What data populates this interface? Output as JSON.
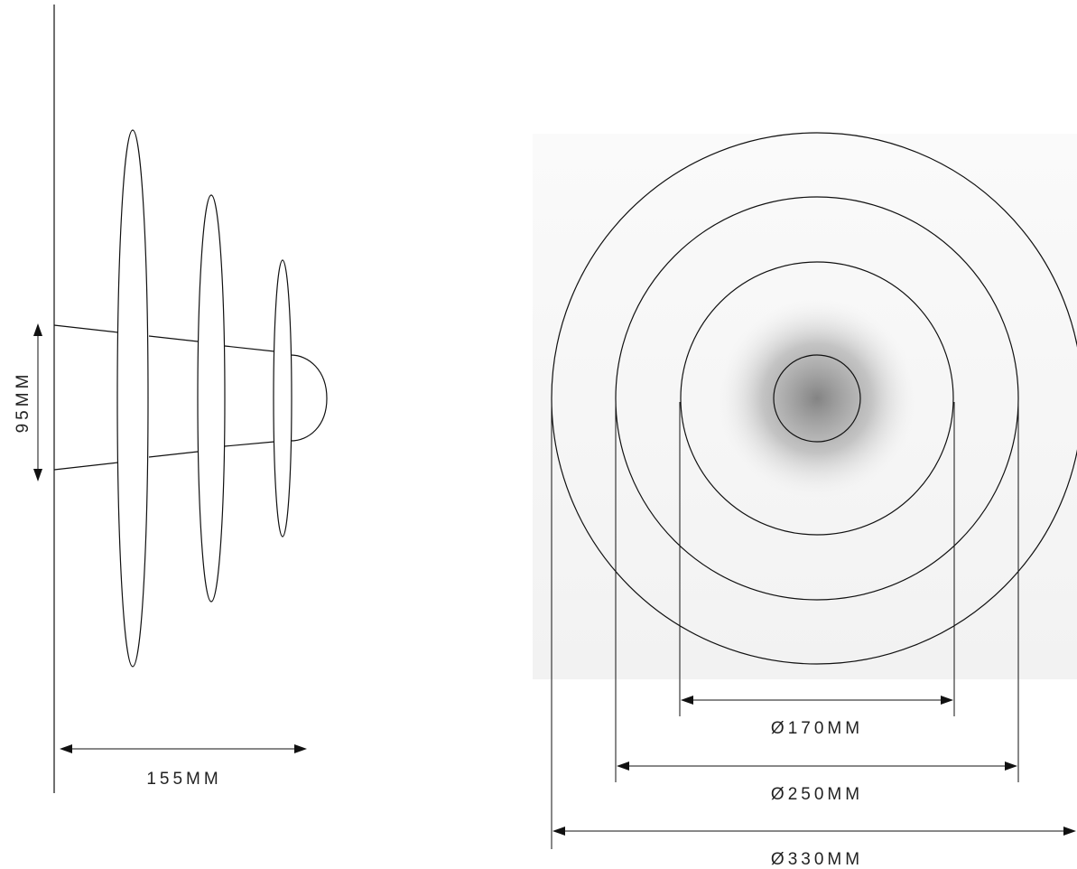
{
  "side_view": {
    "depth_label": "155MM",
    "height_label": "95MM"
  },
  "front_view": {
    "inner_diameter_label": "Ø170MM",
    "middle_diameter_label": "Ø250MM",
    "outer_diameter_label": "Ø330MM"
  },
  "colors": {
    "line": "#111111",
    "outer_disc": "#f4f4f4",
    "middle_disc": "#ececec",
    "inner_disc": "#e2e2e2",
    "center_cap": "#cfcfcf",
    "shadow": "#8c8c8c"
  }
}
